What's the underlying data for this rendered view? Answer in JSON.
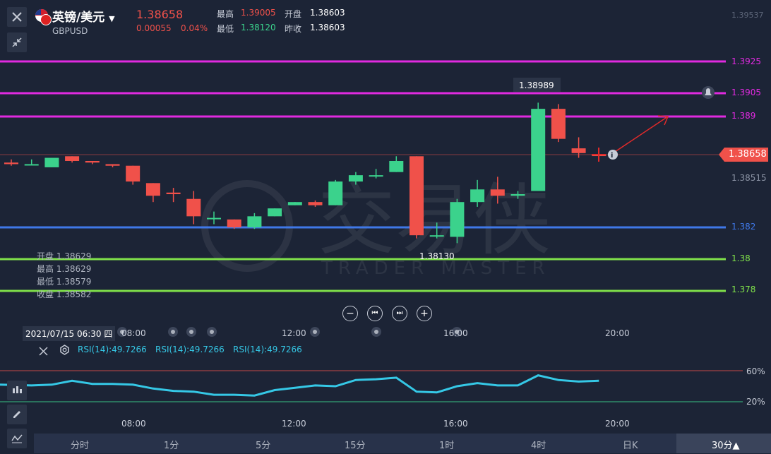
{
  "header": {
    "title": "英镑/美元",
    "symbol": "GBPUSD",
    "price": "1.38658",
    "change": "0.00055",
    "change_pct": "0.04%",
    "high_label": "最高",
    "high_value": "1.39005",
    "low_label": "最低",
    "low_value": "1.38120",
    "open_label": "开盘",
    "open_value": "1.38603",
    "prev_close_label": "昨收",
    "prev_close_value": "1.38603"
  },
  "price_axis": {
    "top_faint": "1.39537",
    "mid_faint": "1.38515",
    "current": "1.38658"
  },
  "levels": [
    {
      "label": "1.3925",
      "color": "#e02ae0"
    },
    {
      "label": "1.3905",
      "color": "#e02ae0"
    },
    {
      "label": "1.389",
      "color": "#e02ae0"
    },
    {
      "label": "1.382",
      "color": "#3f78e8"
    },
    {
      "label": "1.38",
      "color": "#7fe04a"
    },
    {
      "label": "1.378",
      "color": "#7fe04a"
    }
  ],
  "annotations": {
    "high_mark": "1.38989",
    "low_mark": "1.38130"
  },
  "ohlc_box": {
    "open": "开盘 1.38629",
    "high": "最高 1.38629",
    "low": "最低 1.38579",
    "close": "收盘 1.38582"
  },
  "crosshair_date": "2021/07/15 06:30 四",
  "time_labels": [
    "08:00",
    "12:00",
    "16:00",
    "20:00"
  ],
  "rsi": {
    "labels": [
      "RSI(14):49.7266",
      "RSI(14):49.7266",
      "RSI(14):49.7266"
    ],
    "level_high": "60%",
    "level_low": "20%"
  },
  "timeframes": [
    {
      "label": "分时"
    },
    {
      "label": "1分"
    },
    {
      "label": "5分"
    },
    {
      "label": "15分"
    },
    {
      "label": "1时"
    },
    {
      "label": "4时"
    },
    {
      "label": "日K"
    },
    {
      "label": "30分▲"
    }
  ],
  "watermark": {
    "cn": "交易侠",
    "en": "TRADER MASTER"
  },
  "colors": {
    "up": "#3bd28c",
    "down": "#f0514a",
    "background": "#1c2436",
    "rsi_line": "#35c8e6"
  },
  "chart_data": {
    "type": "candlestick",
    "x_ticks": [
      "08:00",
      "12:00",
      "16:00",
      "20:00"
    ],
    "price_levels": [
      1.3925,
      1.3905,
      1.389,
      1.382,
      1.38,
      1.378
    ],
    "current_price": 1.38658,
    "period_high": 1.38989,
    "period_low": 1.3813,
    "candles": [
      {
        "o": 1.3861,
        "h": 1.3863,
        "l": 1.3859,
        "c": 1.386
      },
      {
        "o": 1.386,
        "h": 1.3863,
        "l": 1.386,
        "c": 1.386
      },
      {
        "o": 1.3858,
        "h": 1.3864,
        "l": 1.3858,
        "c": 1.3864
      },
      {
        "o": 1.3865,
        "h": 1.3865,
        "l": 1.3861,
        "c": 1.3862
      },
      {
        "o": 1.3862,
        "h": 1.3862,
        "l": 1.386,
        "c": 1.3861
      },
      {
        "o": 1.386,
        "h": 1.386,
        "l": 1.3858,
        "c": 1.3859
      },
      {
        "o": 1.3859,
        "h": 1.3859,
        "l": 1.3847,
        "c": 1.3849
      },
      {
        "o": 1.3848,
        "h": 1.3848,
        "l": 1.3836,
        "c": 1.384
      },
      {
        "o": 1.3842,
        "h": 1.3845,
        "l": 1.3836,
        "c": 1.3841
      },
      {
        "o": 1.3838,
        "h": 1.3843,
        "l": 1.3822,
        "c": 1.3827
      },
      {
        "o": 1.3826,
        "h": 1.383,
        "l": 1.3822,
        "c": 1.3826
      },
      {
        "o": 1.3825,
        "h": 1.3825,
        "l": 1.3819,
        "c": 1.382
      },
      {
        "o": 1.382,
        "h": 1.3829,
        "l": 1.3819,
        "c": 1.3827
      },
      {
        "o": 1.3827,
        "h": 1.3832,
        "l": 1.3827,
        "c": 1.3832
      },
      {
        "o": 1.3834,
        "h": 1.3836,
        "l": 1.3834,
        "c": 1.3836
      },
      {
        "o": 1.3836,
        "h": 1.3837,
        "l": 1.3833,
        "c": 1.3834
      },
      {
        "o": 1.3834,
        "h": 1.385,
        "l": 1.3834,
        "c": 1.3849
      },
      {
        "o": 1.3849,
        "h": 1.3855,
        "l": 1.3847,
        "c": 1.3853
      },
      {
        "o": 1.3853,
        "h": 1.3857,
        "l": 1.3851,
        "c": 1.3853
      },
      {
        "o": 1.3855,
        "h": 1.3865,
        "l": 1.3855,
        "c": 1.3862
      },
      {
        "o": 1.3865,
        "h": 1.3865,
        "l": 1.3813,
        "c": 1.3815
      },
      {
        "o": 1.3815,
        "h": 1.3823,
        "l": 1.3813,
        "c": 1.3815
      },
      {
        "o": 1.3814,
        "h": 1.3838,
        "l": 1.381,
        "c": 1.3836
      },
      {
        "o": 1.3836,
        "h": 1.385,
        "l": 1.3833,
        "c": 1.3844
      },
      {
        "o": 1.3844,
        "h": 1.3852,
        "l": 1.3835,
        "c": 1.384
      },
      {
        "o": 1.384,
        "h": 1.3843,
        "l": 1.3838,
        "c": 1.3841
      },
      {
        "o": 1.3843,
        "h": 1.38989,
        "l": 1.3843,
        "c": 1.3895
      },
      {
        "o": 1.3895,
        "h": 1.3898,
        "l": 1.3874,
        "c": 1.3876
      },
      {
        "o": 1.387,
        "h": 1.3877,
        "l": 1.3864,
        "c": 1.3867
      },
      {
        "o": 1.3866,
        "h": 1.387,
        "l": 1.3862,
        "c": 1.38658
      }
    ],
    "rsi_series": [
      42,
      41,
      42,
      47,
      43,
      43,
      42,
      37,
      34,
      33,
      29,
      29,
      28,
      35,
      38,
      41,
      40,
      48,
      49,
      51,
      33,
      32,
      40,
      44,
      41,
      41,
      54,
      48,
      46,
      47
    ]
  }
}
